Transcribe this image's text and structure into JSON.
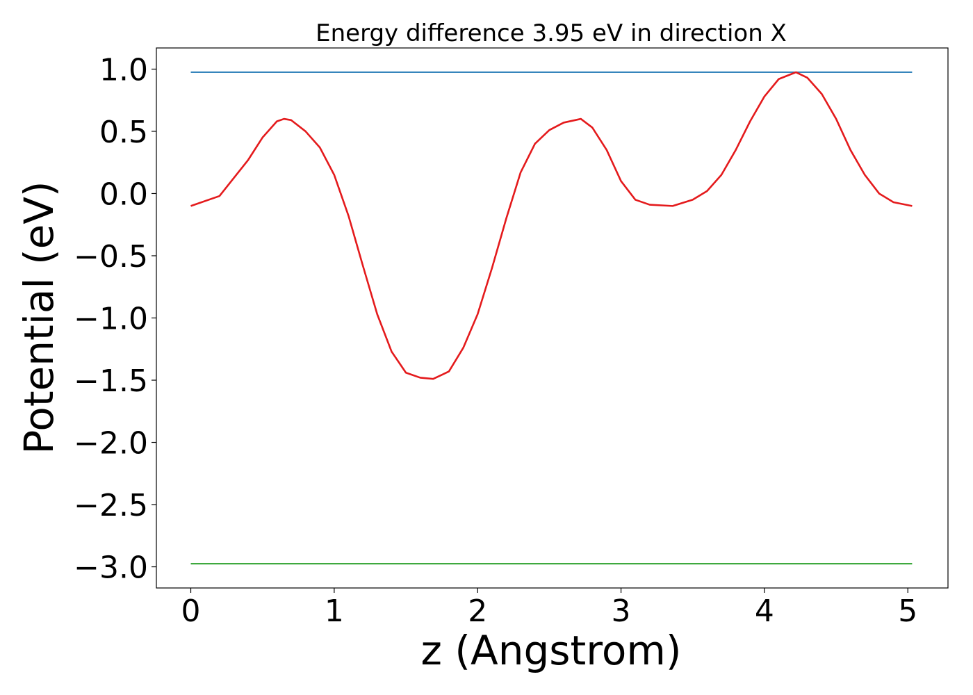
{
  "chart_data": {
    "type": "line",
    "title": "Energy difference 3.95 eV in direction X",
    "xlabel": "z (Angstrom)",
    "ylabel": "Potential (eV)",
    "xlim": [
      -0.24,
      5.28
    ],
    "ylim": [
      -3.17,
      1.17
    ],
    "xticks": [
      0,
      1,
      2,
      3,
      4,
      5
    ],
    "xtick_labels": [
      "0",
      "1",
      "2",
      "3",
      "4",
      "5"
    ],
    "yticks": [
      1.0,
      0.5,
      0.0,
      -0.5,
      -1.0,
      -1.5,
      -2.0,
      -2.5,
      -3.0
    ],
    "ytick_labels": [
      "1.0",
      "0.5",
      "0.0",
      "−0.5",
      "−1.0",
      "−1.5",
      "−2.0",
      "−2.5",
      "−3.0"
    ],
    "grid": false,
    "series": [
      {
        "color": "#1f77b4",
        "kind": "hline",
        "x": [
          0,
          5.03
        ],
        "y": [
          0.975,
          0.975
        ]
      },
      {
        "color": "#2ca02c",
        "kind": "hline",
        "x": [
          0,
          5.03
        ],
        "y": [
          -2.975,
          -2.975
        ]
      },
      {
        "color": "#e41a1c",
        "kind": "curve",
        "x": [
          0,
          0.2,
          0.4,
          0.5,
          0.6,
          0.65,
          0.7,
          0.8,
          0.9,
          1.0,
          1.1,
          1.2,
          1.3,
          1.4,
          1.5,
          1.6,
          1.69,
          1.8,
          1.9,
          2.0,
          2.1,
          2.2,
          2.3,
          2.4,
          2.5,
          2.6,
          2.72,
          2.8,
          2.9,
          3.0,
          3.1,
          3.2,
          3.36,
          3.5,
          3.6,
          3.7,
          3.8,
          3.9,
          4.0,
          4.1,
          4.22,
          4.3,
          4.4,
          4.5,
          4.6,
          4.7,
          4.8,
          4.9,
          5.03
        ],
        "y": [
          -0.1,
          -0.02,
          0.27,
          0.45,
          0.58,
          0.6,
          0.59,
          0.5,
          0.37,
          0.15,
          -0.18,
          -0.58,
          -0.97,
          -1.27,
          -1.44,
          -1.48,
          -1.49,
          -1.43,
          -1.24,
          -0.97,
          -0.6,
          -0.2,
          0.17,
          0.4,
          0.51,
          0.57,
          0.6,
          0.53,
          0.35,
          0.1,
          -0.05,
          -0.09,
          -0.1,
          -0.05,
          0.02,
          0.15,
          0.35,
          0.58,
          0.78,
          0.92,
          0.975,
          0.93,
          0.8,
          0.6,
          0.35,
          0.15,
          0.0,
          -0.07,
          -0.1
        ]
      }
    ]
  }
}
